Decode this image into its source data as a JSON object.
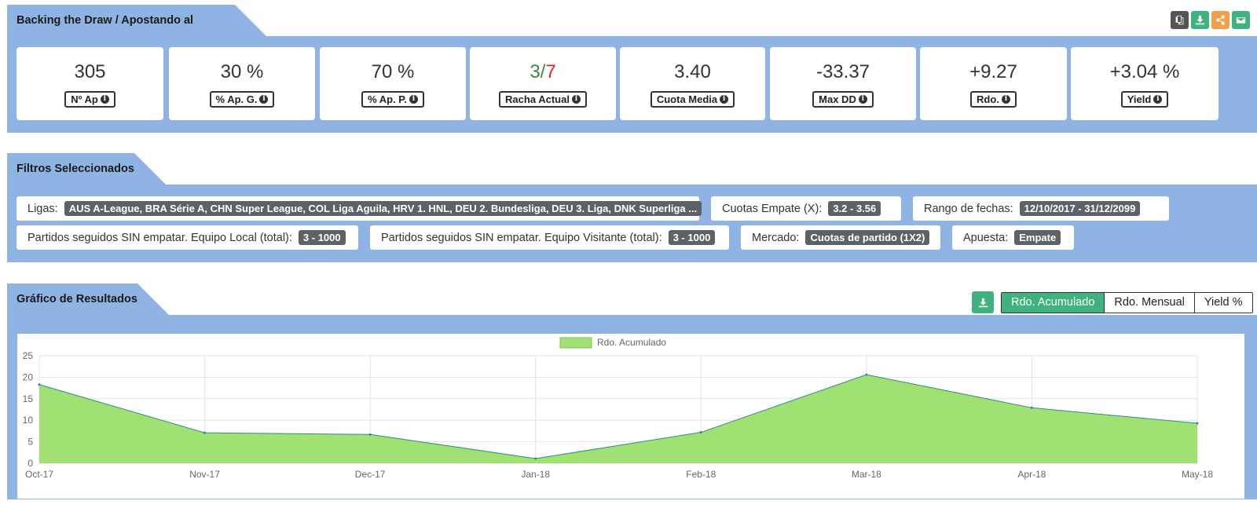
{
  "header": {
    "title": "Backing the Draw / Apostando al Empate",
    "icons": [
      "copy-icon",
      "download-icon",
      "share-icon",
      "email-icon"
    ],
    "icon_colors": [
      "#555555",
      "#3fb27f",
      "#f0a04b",
      "#3fb27f"
    ]
  },
  "stats": [
    {
      "value": "305",
      "label": "Nº Ap",
      "tone": "neutral"
    },
    {
      "value": "30 %",
      "label": "% Ap. G.",
      "tone": "neutral"
    },
    {
      "value": "70 %",
      "label": "% Ap. P.",
      "tone": "neutral"
    },
    {
      "value_a": "3/",
      "value_b": "7",
      "label": "Racha Actual",
      "tone": "mixed"
    },
    {
      "value": "3.40",
      "label": "Cuota Media",
      "tone": "neutral"
    },
    {
      "value": "-33.37",
      "label": "Max DD",
      "tone": "neg"
    },
    {
      "value": "+9.27",
      "label": "Rdo.",
      "tone": "pos"
    },
    {
      "value": "+3.04 %",
      "label": "Yield",
      "tone": "pos"
    }
  ],
  "filters": {
    "title": "Filtros Seleccionados",
    "items": [
      {
        "label": "Ligas:",
        "value": "AUS A-League, BRA Série A, CHN Super League, COL Liga Aguila, HRV 1. HNL, DEU 2. Bundesliga, DEU 3. Liga, DNK Superliga ..."
      },
      {
        "label": "Cuotas Empate (X):",
        "value": "3.2 - 3.56"
      },
      {
        "label": "Rango de fechas:",
        "value": "12/10/2017 - 31/12/2099"
      },
      {
        "label": "Partidos seguidos SIN empatar. Equipo Local (total):",
        "value": "3 - 1000"
      },
      {
        "label": "Partidos seguidos SIN empatar. Equipo Visitante (total):",
        "value": "3 - 1000"
      },
      {
        "label": "Mercado:",
        "value": "Cuotas de partido (1X2)"
      },
      {
        "label": "Apuesta:",
        "value": "Empate"
      }
    ]
  },
  "chart_section": {
    "title": "Gráfico de Resultados",
    "tabs": [
      "Rdo. Acumulado",
      "Rdo. Mensual",
      "Yield %"
    ],
    "active_tab": "Rdo. Acumulado"
  },
  "chart_data": {
    "type": "area",
    "x": [
      "Oct-17",
      "Nov-17",
      "Dec-17",
      "Jan-18",
      "Feb-18",
      "Mar-18",
      "Apr-18",
      "May-18"
    ],
    "series": [
      {
        "name": "Rdo. Acumulado",
        "values": [
          18.3,
          7.1,
          6.7,
          1.1,
          7.2,
          20.6,
          12.9,
          9.3
        ],
        "color": "#a1e072",
        "line": "#2e8b8b"
      }
    ],
    "ylim": [
      0,
      25
    ],
    "yticks": [
      0,
      5,
      10,
      15,
      20,
      25
    ],
    "grid": true,
    "legend": "top-center"
  }
}
